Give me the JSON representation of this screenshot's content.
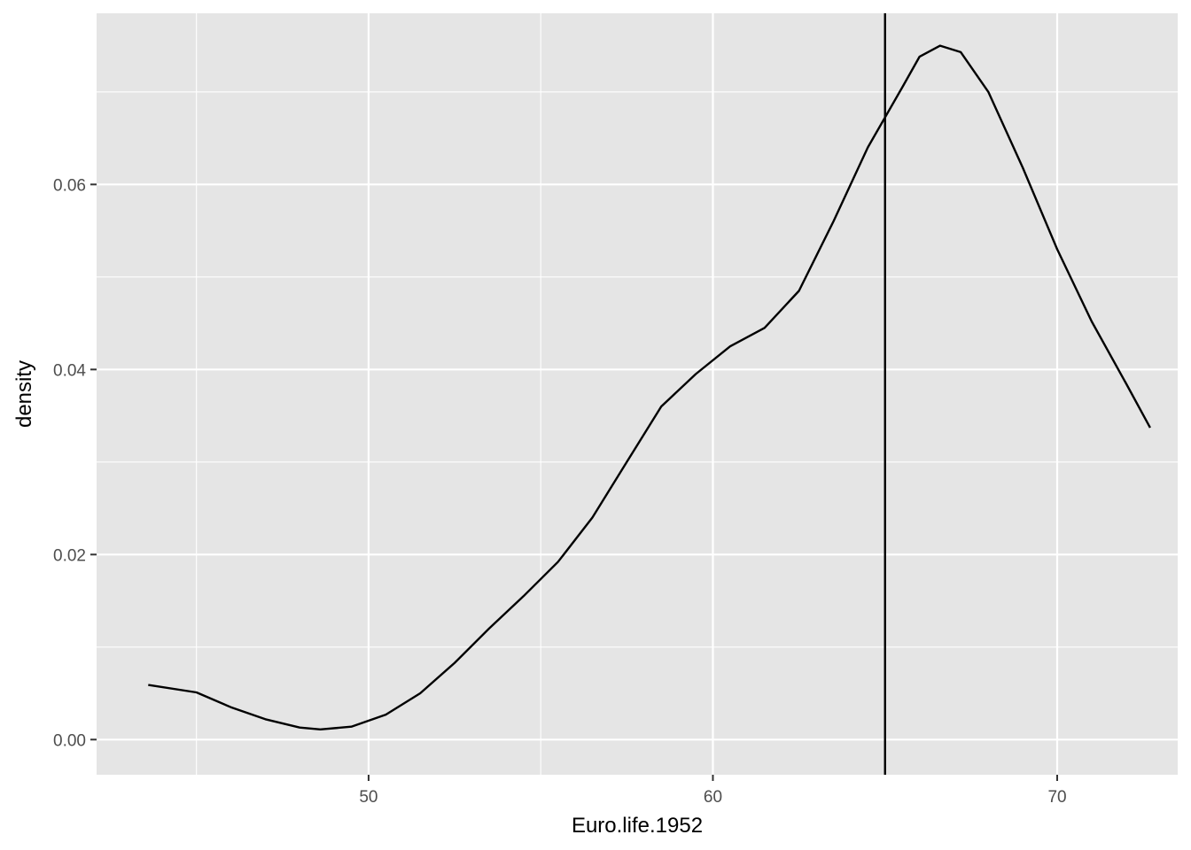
{
  "chart_data": {
    "type": "line",
    "title": "",
    "xlabel": "Euro.life.1952",
    "ylabel": "density",
    "xlim": [
      42.1,
      73.5
    ],
    "ylim": [
      -0.0038,
      0.0785
    ],
    "x_ticks": [
      50,
      60,
      70
    ],
    "x_tick_labels": [
      "50",
      "60",
      "70"
    ],
    "y_ticks": [
      0.0,
      0.02,
      0.04,
      0.06
    ],
    "y_tick_labels": [
      "0.00",
      "0.02",
      "0.04",
      "0.06"
    ],
    "x_minor_ticks": [
      45,
      55,
      65
    ],
    "y_minor_ticks": [
      0.01,
      0.03,
      0.05,
      0.07
    ],
    "grid": true,
    "legend": "none",
    "vline": {
      "x": 65.0
    },
    "series": [
      {
        "x": [
          43.6,
          45.0,
          46.0,
          47.0,
          48.0,
          48.6,
          49.5,
          50.5,
          51.5,
          52.5,
          53.5,
          54.5,
          55.5,
          56.5,
          57.5,
          58.5,
          59.5,
          60.5,
          61.5,
          62.5,
          63.5,
          64.5,
          65.5,
          66.0,
          66.6,
          67.2,
          68.0,
          69.0,
          70.0,
          71.0,
          72.0,
          72.7
        ],
        "y": [
          0.0059,
          0.0051,
          0.0035,
          0.0022,
          0.0013,
          0.0011,
          0.0014,
          0.0027,
          0.005,
          0.0083,
          0.012,
          0.0155,
          0.0192,
          0.024,
          0.03,
          0.036,
          0.0395,
          0.0425,
          0.0445,
          0.0485,
          0.056,
          0.064,
          0.0705,
          0.0738,
          0.075,
          0.0743,
          0.07,
          0.0618,
          0.053,
          0.0452,
          0.0385,
          0.0337
        ]
      }
    ],
    "colors": {
      "panel": "#e5e5e5",
      "grid": "#ffffff",
      "line": "#000000",
      "tick_text": "#4d4d4d"
    }
  }
}
